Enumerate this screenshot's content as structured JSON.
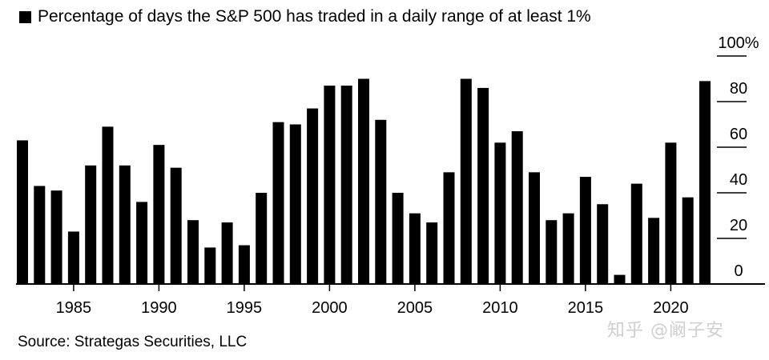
{
  "legend": {
    "label": "Percentage of days the S&P 500 has traded in a daily range of at least 1%"
  },
  "source": "Source: Strategas Securities, LLC",
  "watermark": "知乎 @阚子安",
  "colors": {
    "bars": "#000000",
    "axis": "#000000",
    "grid": "#000000"
  },
  "chart_data": {
    "type": "bar",
    "title": "",
    "xlabel": "",
    "ylabel": "",
    "ylim": [
      0,
      100
    ],
    "y_ticks": [
      {
        "value": 100,
        "label": "100%"
      },
      {
        "value": 80,
        "label": "80"
      },
      {
        "value": 60,
        "label": "60"
      },
      {
        "value": 40,
        "label": "40"
      },
      {
        "value": 20,
        "label": "20"
      },
      {
        "value": 0,
        "label": "0"
      }
    ],
    "x_tick_labels": [
      "1985",
      "1990",
      "1995",
      "2000",
      "2005",
      "2010",
      "2015",
      "2020"
    ],
    "categories": [
      1982,
      1983,
      1984,
      1985,
      1986,
      1987,
      1988,
      1989,
      1990,
      1991,
      1992,
      1993,
      1994,
      1995,
      1996,
      1997,
      1998,
      1999,
      2000,
      2001,
      2002,
      2003,
      2004,
      2005,
      2006,
      2007,
      2008,
      2009,
      2010,
      2011,
      2012,
      2013,
      2014,
      2015,
      2016,
      2017,
      2018,
      2019,
      2020,
      2021,
      2022
    ],
    "values": [
      63,
      43,
      41,
      23,
      52,
      69,
      52,
      36,
      61,
      51,
      28,
      16,
      27,
      17,
      40,
      71,
      70,
      77,
      87,
      87,
      90,
      72,
      40,
      31,
      27,
      49,
      90,
      86,
      62,
      67,
      49,
      28,
      31,
      47,
      35,
      4,
      44,
      29,
      62,
      38,
      89
    ],
    "grid": true,
    "legend_position": "top-left"
  }
}
